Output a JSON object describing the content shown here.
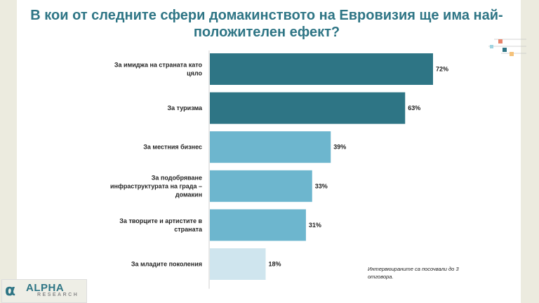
{
  "title": "В кои от следните сфери домакинството на Евровизия ще има най-положителен ефект?",
  "note": "Интервюираните са посочвали до 3 отговора.",
  "logo": {
    "name": "ALPHA",
    "sub": "RESEARCH"
  },
  "chart_data": {
    "type": "bar",
    "orientation": "horizontal",
    "categories": [
      [
        "За имиджа на страната като",
        "цяло"
      ],
      [
        "За туризма"
      ],
      [
        "За местния бизнес"
      ],
      [
        "За подобряване",
        "инфраструктурата на града –",
        "домакин"
      ],
      [
        "За творците и артистите в",
        "страната"
      ],
      [
        "За младите поколения"
      ]
    ],
    "values": [
      72,
      63,
      39,
      33,
      31,
      18
    ],
    "value_labels": [
      "72%",
      "63%",
      "39%",
      "33%",
      "31%",
      "18%"
    ],
    "bar_colors": [
      "#2e7585",
      "#2e7585",
      "#6db6ce",
      "#6db6ce",
      "#6db6ce",
      "#cfe5ee"
    ],
    "xlim": [
      0,
      100
    ],
    "grid": false
  }
}
